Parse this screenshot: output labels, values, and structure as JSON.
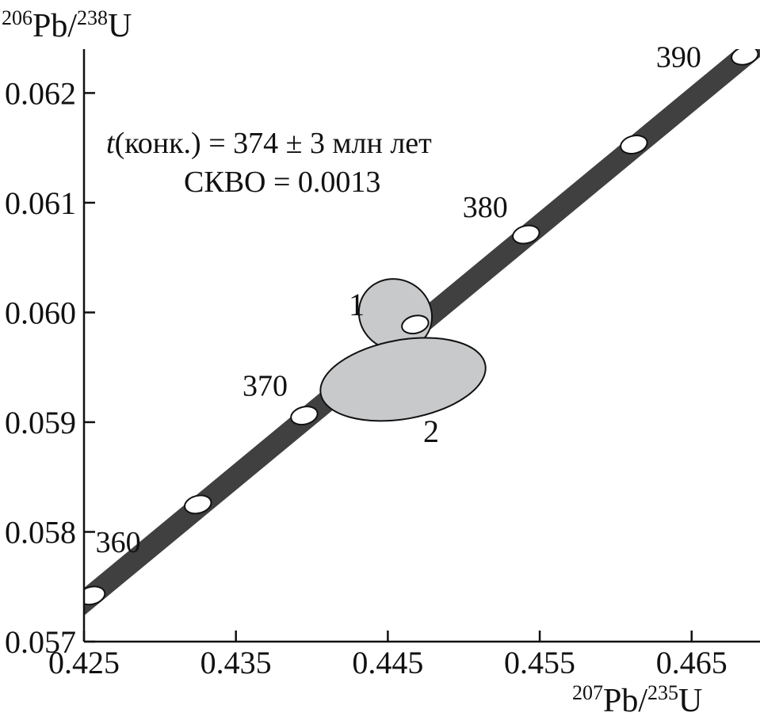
{
  "chart_data": {
    "type": "scatter",
    "subtype": "concordia",
    "title": "",
    "xlabel": {
      "mass1": "207",
      "elem1": "Pb",
      "sep": "/",
      "mass2": "235",
      "elem2": "U"
    },
    "ylabel": {
      "mass1": "206",
      "elem1": "Pb",
      "sep": "/",
      "mass2": "238",
      "elem2": "U"
    },
    "xlim": [
      0.425,
      0.4695
    ],
    "ylim": [
      0.057,
      0.0624
    ],
    "x_ticks": [
      "0.425",
      "0.435",
      "0.445",
      "0.455",
      "0.465"
    ],
    "y_ticks": [
      "0.057",
      "0.058",
      "0.059",
      "0.060",
      "0.061",
      "0.062"
    ],
    "concordia": {
      "color": "#404040",
      "points": [
        {
          "age": 360,
          "x": 0.4255,
          "y": 0.05742,
          "label": "360"
        },
        {
          "age": 365,
          "x": 0.4325,
          "y": 0.05825,
          "label": ""
        },
        {
          "age": 370,
          "x": 0.4395,
          "y": 0.05906,
          "label": "370"
        },
        {
          "age": 375,
          "x": 0.4468,
          "y": 0.05989,
          "label": ""
        },
        {
          "age": 380,
          "x": 0.4541,
          "y": 0.06071,
          "label": "380"
        },
        {
          "age": 385,
          "x": 0.4612,
          "y": 0.06153,
          "label": ""
        },
        {
          "age": 390,
          "x": 0.4685,
          "y": 0.06234,
          "label": "390"
        }
      ]
    },
    "ellipses": [
      {
        "label": "1",
        "cx": 0.4455,
        "cy": 0.05998,
        "rx": 0.0023,
        "ry": 0.00034,
        "angle_deg": -55,
        "fill": "#c8c9cb"
      },
      {
        "label": "2",
        "cx": 0.446,
        "cy": 0.05939,
        "rx": 0.0055,
        "ry": 0.00036,
        "angle_deg": -10,
        "fill": "#c8c9cb"
      }
    ],
    "annotation": {
      "line1_italic": "t",
      "line1_rest": "(конк.) = 374 ± 3 млн лет",
      "line2": "СКВО = 0.0013"
    },
    "grid": false,
    "legend": "none"
  }
}
